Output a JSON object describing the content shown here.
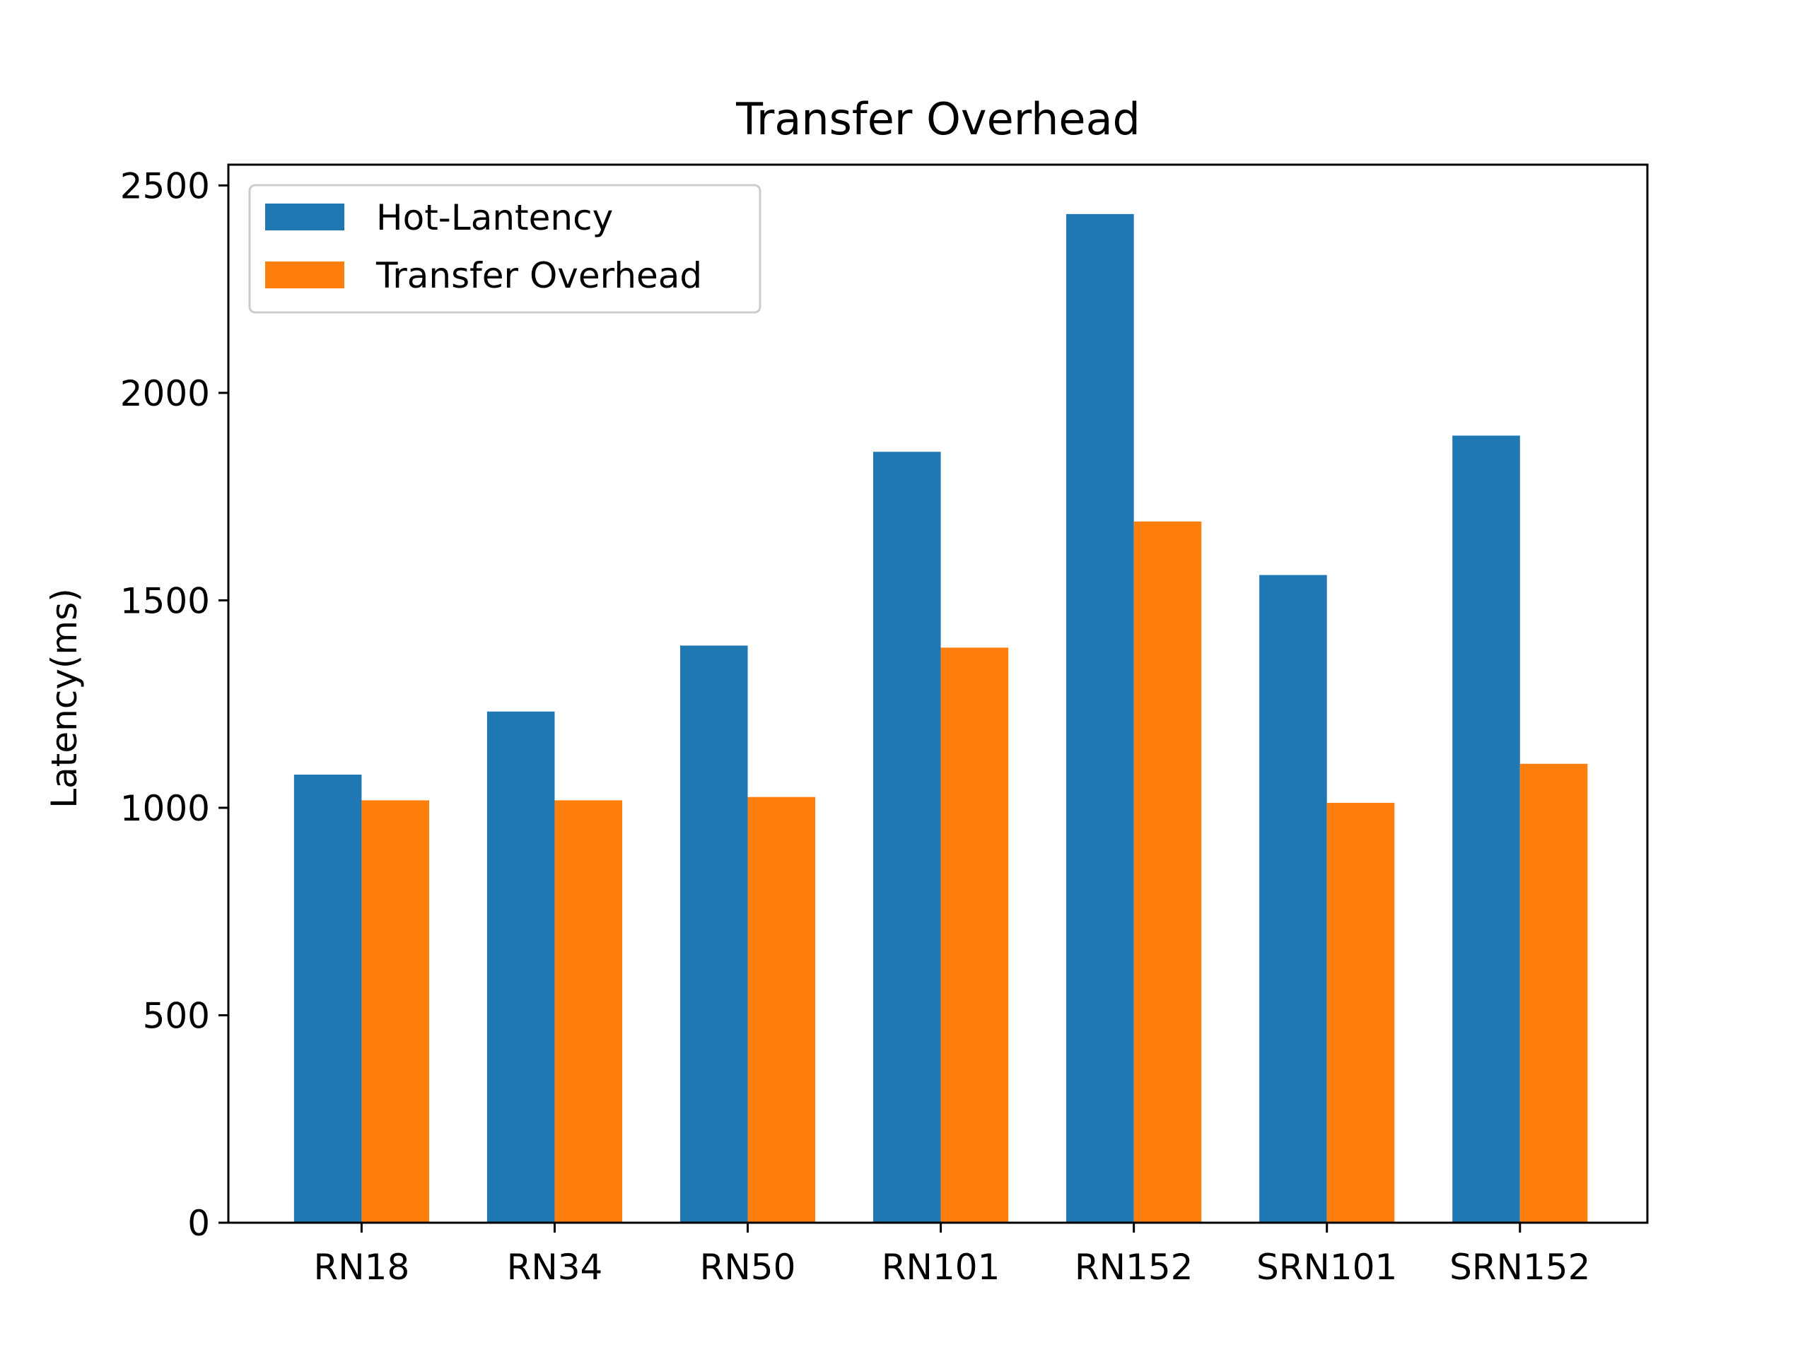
{
  "chart_data": {
    "type": "bar",
    "title": "Transfer Overhead",
    "xlabel": "",
    "ylabel": "Latency(ms)",
    "categories": [
      "RN18",
      "RN34",
      "RN50",
      "RN101",
      "RN152",
      "SRN101",
      "SRN152"
    ],
    "series": [
      {
        "name": "Hot-Lantency",
        "color": "#1f77b4",
        "values": [
          1080,
          1232,
          1391,
          1858,
          2431,
          1561,
          1897
        ]
      },
      {
        "name": "Transfer Overhead",
        "color": "#ff7f0e",
        "values": [
          1018,
          1018,
          1026,
          1386,
          1690,
          1012,
          1106
        ]
      }
    ],
    "ylim": [
      0,
      2550
    ],
    "yticks": [
      0,
      500,
      1000,
      1500,
      2000,
      2500
    ],
    "grid": false,
    "legend_position": "top-left"
  }
}
